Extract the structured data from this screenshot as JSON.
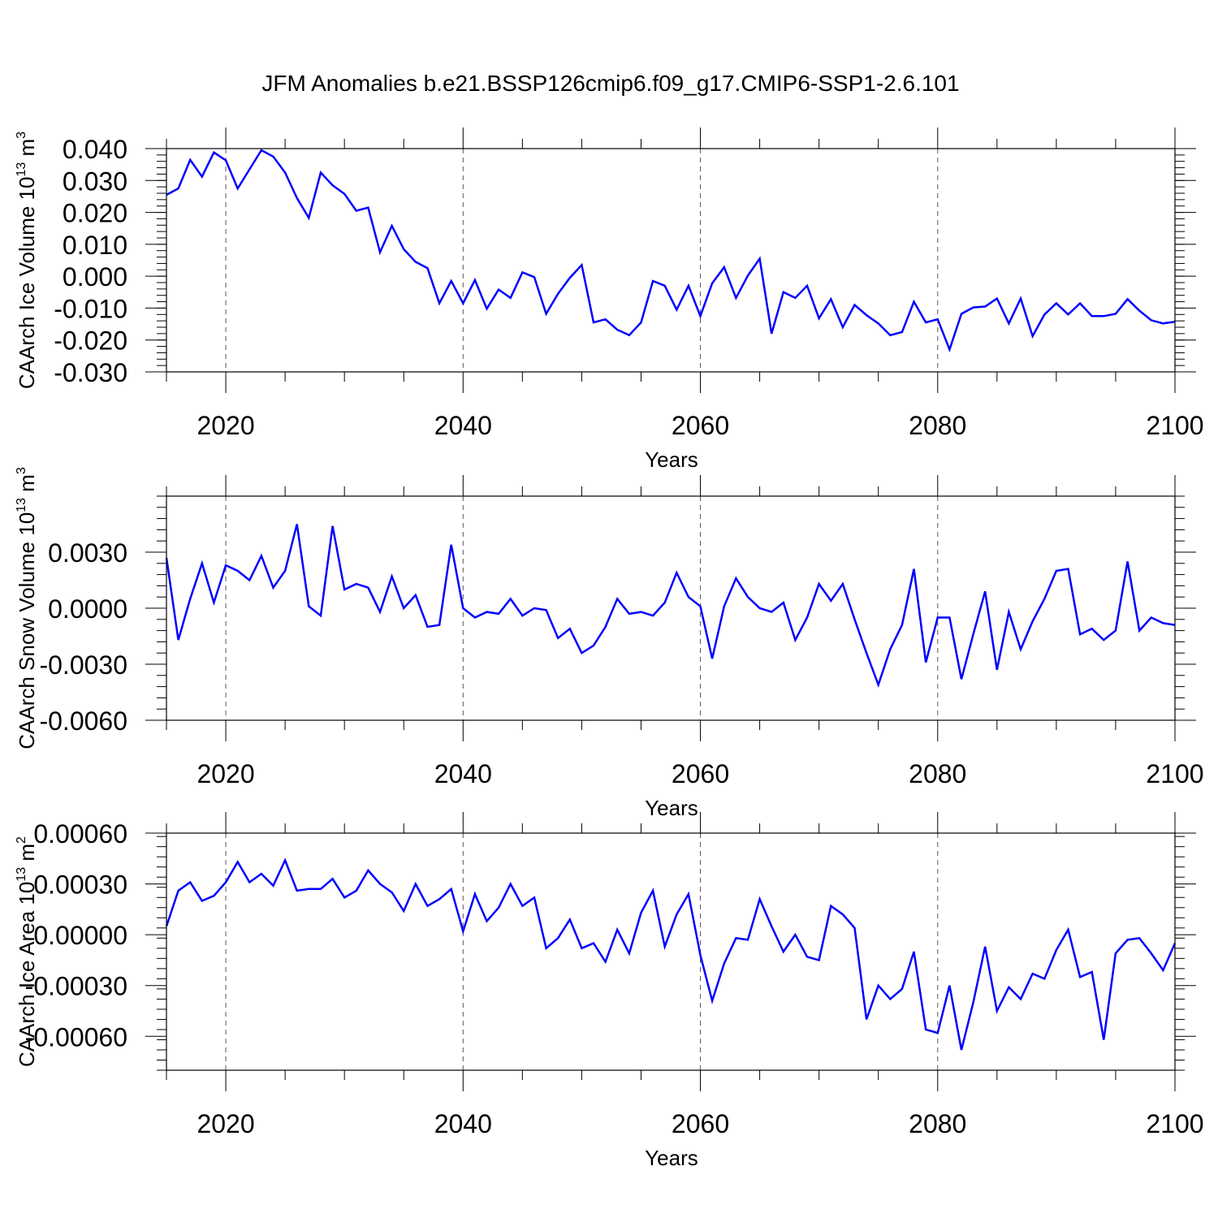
{
  "title": "JFM Anomalies b.e21.BSSP126cmip6.f09_g17.CMIP6-SSP1-2.6.101",
  "colors": {
    "series": "#0000ff",
    "axis": "#000000",
    "grid": "#555555"
  },
  "chart_data": [
    {
      "type": "line",
      "ylabel_text": "CAArch Ice Volume 10",
      "ylabel_exponent": "13",
      "ylabel_unit": "m",
      "ylabel_unit_exponent": "3",
      "xlabel": "Years",
      "xlim": [
        2015,
        2100
      ],
      "ylim": [
        -0.03,
        0.04
      ],
      "x_ticks": [
        "2020",
        "2040",
        "2060",
        "2080",
        "2100"
      ],
      "y_ticks": [
        "0.040",
        "0.030",
        "0.020",
        "0.010",
        "0.000",
        "-0.010",
        "-0.020",
        "-0.030"
      ],
      "y_tick_values": [
        0.04,
        0.03,
        0.02,
        0.01,
        0.0,
        -0.01,
        -0.02,
        -0.03
      ],
      "grid": "vertical dashed at major x ticks",
      "x_start": 2015,
      "values": [
        0.0255,
        0.0275,
        0.0365,
        0.0312,
        0.0388,
        0.0363,
        0.0275,
        0.0335,
        0.0395,
        0.0375,
        0.0325,
        0.0245,
        0.0183,
        0.0325,
        0.0285,
        0.0258,
        0.0205,
        0.0215,
        0.0075,
        0.0158,
        0.0085,
        0.0045,
        0.0025,
        -0.0085,
        -0.0015,
        -0.0085,
        -0.0012,
        -0.0102,
        -0.0042,
        -0.0068,
        0.0012,
        -0.0003,
        -0.0118,
        -0.0055,
        -0.0005,
        0.0035,
        -0.0145,
        -0.0135,
        -0.0168,
        -0.0185,
        -0.0145,
        -0.0015,
        -0.003,
        -0.0105,
        -0.003,
        -0.0125,
        -0.0022,
        0.0028,
        -0.0068,
        0.0002,
        0.0055,
        -0.018,
        -0.005,
        -0.0068,
        -0.003,
        -0.0132,
        -0.0072,
        -0.016,
        -0.009,
        -0.0122,
        -0.0148,
        -0.0185,
        -0.0175,
        -0.008,
        -0.0145,
        -0.0135,
        -0.023,
        -0.0118,
        -0.0098,
        -0.0095,
        -0.007,
        -0.0148,
        -0.007,
        -0.0188,
        -0.012,
        -0.0085,
        -0.012,
        -0.0085,
        -0.0125,
        -0.0125,
        -0.0118,
        -0.0072,
        -0.0108,
        -0.0138,
        -0.0148,
        -0.0143
      ]
    },
    {
      "type": "line",
      "ylabel_text": "CAArch Snow Volume 10",
      "ylabel_exponent": "13",
      "ylabel_unit": "m",
      "ylabel_unit_exponent": "3",
      "xlabel": "Years",
      "xlim": [
        2015,
        2100
      ],
      "ylim": [
        -0.006,
        0.006
      ],
      "x_ticks": [
        "2020",
        "2040",
        "2060",
        "2080",
        "2100"
      ],
      "y_ticks": [
        "0.0030",
        "0.0000",
        "-0.0030",
        "-0.0060"
      ],
      "y_tick_values": [
        0.003,
        0.0,
        -0.003,
        -0.006
      ],
      "grid": "vertical dashed at major x ticks",
      "x_start": 2015,
      "values": [
        0.0027,
        -0.0017,
        0.0005,
        0.0024,
        0.0003,
        0.0023,
        0.002,
        0.0015,
        0.0028,
        0.0011,
        0.002,
        0.0045,
        0.0001,
        -0.0004,
        0.0044,
        0.001,
        0.0013,
        0.0011,
        -0.0002,
        0.0017,
        0.0,
        0.0007,
        -0.001,
        -0.0009,
        0.0034,
        0.0,
        -0.0005,
        -0.0002,
        -0.0003,
        0.0005,
        -0.0004,
        0.0,
        -0.0001,
        -0.0016,
        -0.0011,
        -0.0024,
        -0.002,
        -0.001,
        0.0005,
        -0.0003,
        -0.0002,
        -0.0004,
        0.0003,
        0.0019,
        0.0006,
        0.0001,
        -0.0027,
        0.0001,
        0.0016,
        0.0006,
        0.0,
        -0.0002,
        0.0003,
        -0.0017,
        -0.0005,
        0.0013,
        0.0004,
        0.0013,
        -0.0006,
        -0.0024,
        -0.0041,
        -0.0022,
        -0.0009,
        0.0021,
        -0.0029,
        -0.0005,
        -0.0005,
        -0.0038,
        -0.0014,
        0.0009,
        -0.0033,
        -0.0002,
        -0.0022,
        -0.0007,
        0.0005,
        0.002,
        0.0021,
        -0.0014,
        -0.0011,
        -0.0017,
        -0.0012,
        0.0025,
        -0.0012,
        -0.0005,
        -0.0008,
        -0.0009
      ]
    },
    {
      "type": "line",
      "ylabel_text": "CAArch Ice Area 10",
      "ylabel_exponent": "13",
      "ylabel_unit": "m",
      "ylabel_unit_exponent": "2",
      "xlabel": "Years",
      "xlim": [
        2015,
        2100
      ],
      "ylim": [
        -0.0008,
        0.0006
      ],
      "x_ticks": [
        "2020",
        "2040",
        "2060",
        "2080",
        "2100"
      ],
      "y_ticks": [
        "0.00060",
        "0.00030",
        "0.00000",
        "-0.00030",
        "-0.00060"
      ],
      "y_tick_values": [
        0.0006,
        0.0003,
        0.0,
        -0.0003,
        -0.0006
      ],
      "grid": "vertical dashed at major x ticks",
      "x_start": 2015,
      "values": [
        5e-05,
        0.00026,
        0.00031,
        0.0002,
        0.00023,
        0.00031,
        0.00043,
        0.00031,
        0.00036,
        0.00029,
        0.00044,
        0.00026,
        0.00027,
        0.00027,
        0.00033,
        0.00022,
        0.00026,
        0.00038,
        0.0003,
        0.00025,
        0.00014,
        0.0003,
        0.00017,
        0.00021,
        0.00027,
        2e-05,
        0.00024,
        8e-05,
        0.00016,
        0.0003,
        0.00017,
        0.00022,
        -8e-05,
        -2e-05,
        9e-05,
        -8e-05,
        -5e-05,
        -0.00016,
        3e-05,
        -0.00011,
        0.00013,
        0.00026,
        -7e-05,
        0.00012,
        0.00024,
        -0.00012,
        -0.00039,
        -0.00017,
        -2e-05,
        -3e-05,
        0.00021,
        5e-05,
        -0.0001,
        0.0,
        -0.00013,
        -0.00015,
        0.00017,
        0.00012,
        4e-05,
        -0.0005,
        -0.0003,
        -0.00038,
        -0.00032,
        -0.0001,
        -0.00056,
        -0.00058,
        -0.0003,
        -0.00068,
        -0.0004,
        -7e-05,
        -0.00045,
        -0.00031,
        -0.00038,
        -0.00023,
        -0.00026,
        -9e-05,
        3e-05,
        -0.00025,
        -0.00022,
        -0.00062,
        -0.00011,
        -3e-05,
        -2e-05,
        -0.00011,
        -0.00021,
        -5e-05
      ]
    }
  ]
}
